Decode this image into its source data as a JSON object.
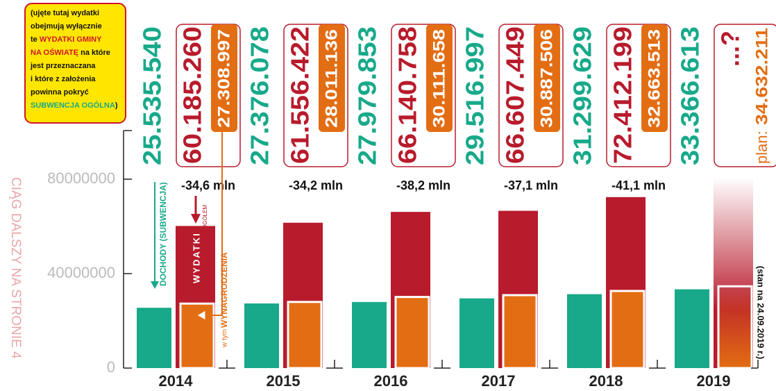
{
  "chart_data": {
    "type": "bar",
    "categories": [
      "2014",
      "2015",
      "2016",
      "2017",
      "2018",
      "2019"
    ],
    "series": [
      {
        "name": "DOCHODY (SUBWENCJA)",
        "color": "#17a98a",
        "values": [
          25535540,
          27376078,
          27979853,
          29516997,
          31299629,
          33366613
        ],
        "value_labels": [
          "25.535.540",
          "27.376.078",
          "27.979.853",
          "29.516.997",
          "31.299.629",
          "33.366.613"
        ]
      },
      {
        "name": "WYDATKI",
        "color": "#b81b2c",
        "values": [
          60185260,
          61556422,
          66140758,
          66607449,
          72412199,
          null
        ],
        "value_labels": [
          "60.185.260",
          "61.556.422",
          "66.140.758",
          "66.607.449",
          "72.412.199",
          "...?"
        ]
      },
      {
        "name": "WYNAGRODZENIA",
        "color": "#e36d13",
        "values": [
          27308997,
          28011136,
          30111658,
          30887506,
          32663513,
          34632211
        ],
        "value_labels": [
          "27.308.997",
          "28.011.136",
          "30.111.658",
          "30.887.506",
          "32.663.513",
          "34.632.211"
        ]
      }
    ],
    "differences": [
      "-34,6 mln",
      "-34,2 mln",
      "-38,2 mln",
      "-37,1 mln",
      "-41,1 mln"
    ],
    "label_total": "OGÓŁEM",
    "label_including": "w tym",
    "label_plan": "plan:",
    "ylim": [
      0,
      100000000
    ],
    "yticks": [
      0,
      40000000,
      80000000
    ],
    "note": [
      "(ujęte tutaj wydatki",
      "obejmują wyłącznie",
      "te ",
      "WYDATKI GMINY",
      "NA OŚWIATĘ",
      " na które",
      "jest przeznaczana",
      "i które z założenia",
      "powinna pokryć",
      "SUBWENCJA OGÓLNA",
      ")"
    ],
    "continued": "CIĄG DALSZY NA STRONIE 4",
    "status": "(stan na 24.09.2019 r.)"
  }
}
